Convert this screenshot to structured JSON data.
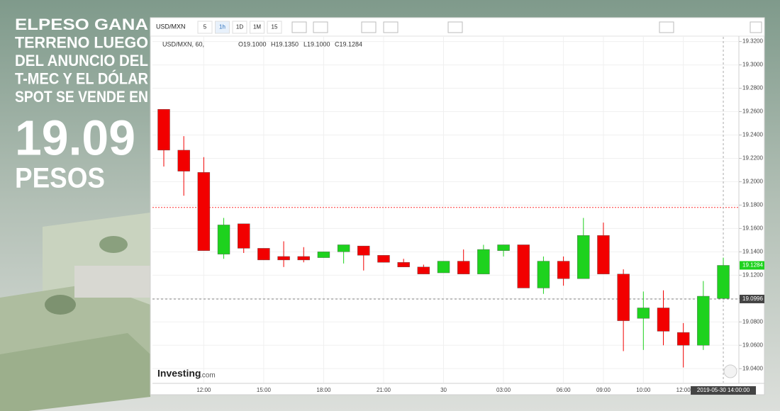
{
  "headline": {
    "lines": [
      "ELPESO GANA",
      "TERRENO LUEGO",
      "DEL ANUNCIO DEL",
      "T-MEC Y EL DÓLAR",
      "SPOT SE VENDE EN"
    ],
    "price": "19.09",
    "unit": "PESOS"
  },
  "toolbar": {
    "symbol": "USD/MXN",
    "intervals": [
      "5",
      "1h",
      "1D",
      "1M",
      "15"
    ]
  },
  "legend": {
    "symbol": "USD/MXN, 60,",
    "open": "O19.1000",
    "high": "H19.1350",
    "low": "L19.1000",
    "close": "C19.1284"
  },
  "logo": {
    "brand": "Investing",
    "suffix": ".com"
  },
  "chart_data": {
    "type": "candlestick",
    "categories": [
      null,
      null,
      "12:00",
      null,
      null,
      "15:00",
      null,
      null,
      "18:00",
      null,
      null,
      "21:00",
      null,
      null,
      "30",
      null,
      null,
      "03:00",
      null,
      null,
      "06:00",
      null,
      "09:00",
      null,
      "10:00",
      null,
      "12:00",
      null,
      null
    ],
    "open": [
      19.262,
      19.227,
      19.208,
      19.138,
      19.164,
      19.143,
      19.136,
      19.136,
      19.135,
      19.14,
      19.145,
      19.137,
      19.131,
      19.127,
      19.122,
      19.132,
      19.121,
      19.141,
      19.146,
      19.109,
      19.132,
      19.117,
      19.154,
      19.121,
      19.083,
      19.092,
      19.071,
      19.06,
      19.1
    ],
    "high": [
      19.262,
      19.239,
      19.221,
      19.169,
      19.164,
      19.143,
      19.149,
      19.144,
      19.14,
      19.146,
      19.145,
      19.137,
      19.134,
      19.129,
      19.132,
      19.142,
      19.146,
      19.146,
      19.146,
      19.136,
      19.136,
      19.169,
      19.165,
      19.125,
      19.106,
      19.107,
      19.079,
      19.115,
      19.135
    ],
    "low": [
      19.213,
      19.188,
      19.141,
      19.134,
      19.139,
      19.133,
      19.127,
      19.131,
      19.135,
      19.13,
      19.124,
      19.131,
      19.127,
      19.121,
      19.122,
      19.121,
      19.121,
      19.136,
      19.109,
      19.104,
      19.111,
      19.117,
      19.121,
      19.055,
      19.056,
      19.06,
      19.041,
      19.056,
      19.1
    ],
    "close": [
      19.227,
      19.209,
      19.141,
      19.163,
      19.143,
      19.133,
      19.133,
      19.133,
      19.14,
      19.146,
      19.137,
      19.131,
      19.127,
      19.121,
      19.132,
      19.121,
      19.142,
      19.146,
      19.109,
      19.132,
      19.117,
      19.154,
      19.121,
      19.081,
      19.092,
      19.072,
      19.06,
      19.102,
      19.1284
    ],
    "up_color": "#1ed21e",
    "down_color": "#f20000",
    "ylim": [
      19.028,
      19.324
    ],
    "yticks": [
      {
        "value": 19.04,
        "label": "19.0400"
      },
      {
        "value": 19.06,
        "label": "19.0600"
      },
      {
        "value": 19.08,
        "label": "19.0800"
      },
      {
        "value": 19.1,
        "label": "19.1000"
      },
      {
        "value": 19.12,
        "label": "19.1200"
      },
      {
        "value": 19.14,
        "label": "19.1400"
      },
      {
        "value": 19.16,
        "label": "19.1600"
      },
      {
        "value": 19.18,
        "label": "19.1800"
      },
      {
        "value": 19.2,
        "label": "19.2000"
      },
      {
        "value": 19.22,
        "label": "19.2200"
      },
      {
        "value": 19.24,
        "label": "19.2400"
      },
      {
        "value": 19.26,
        "label": "19.2600"
      },
      {
        "value": 19.28,
        "label": "19.2800"
      },
      {
        "value": 19.3,
        "label": "19.3000"
      },
      {
        "value": 19.32,
        "label": "19.3200"
      }
    ],
    "grid": true,
    "reference_line": 19.178,
    "last_price": 19.1284,
    "crosshair_price": 19.0996,
    "crosshair_time": "2019-05-30 14:00:00"
  }
}
